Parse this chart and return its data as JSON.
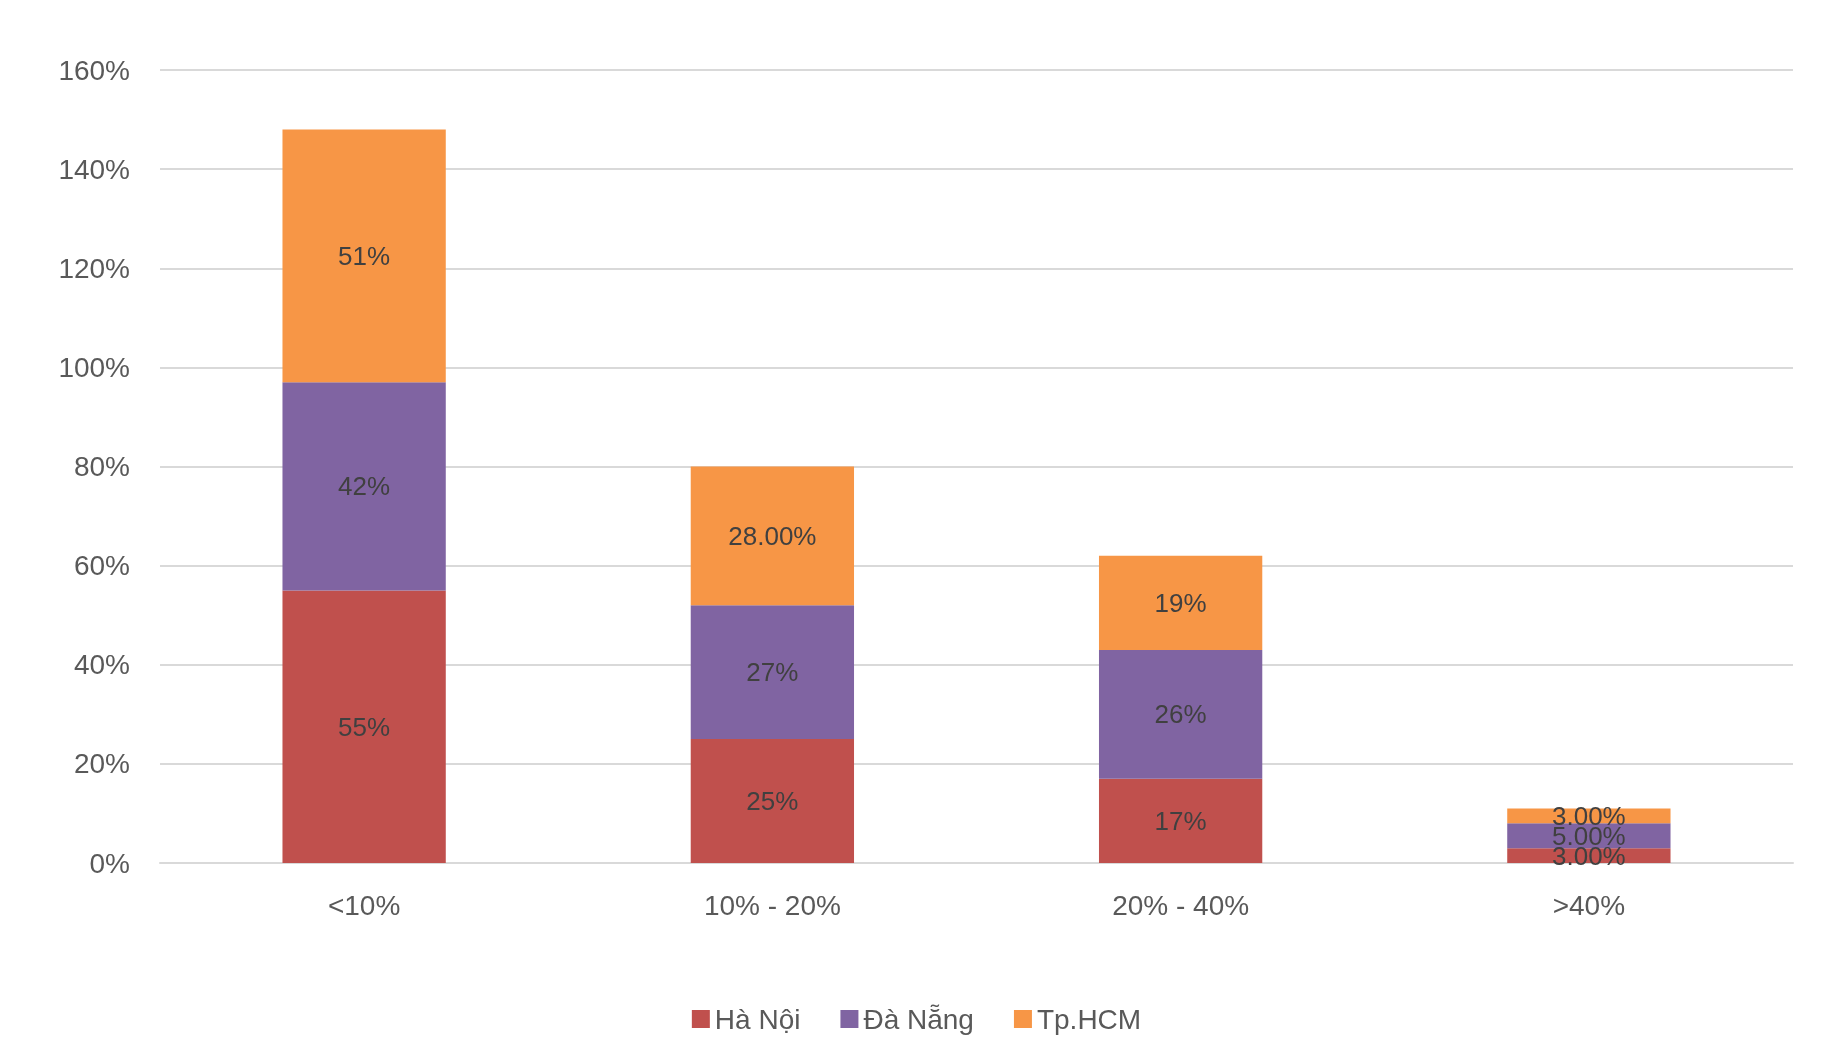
{
  "chart_data": {
    "type": "bar",
    "stacked": true,
    "categories": [
      "<10%",
      "10% - 20%",
      "20% - 40%",
      ">40%"
    ],
    "series": [
      {
        "name": "Hà Nội",
        "color": "#c0504d",
        "values": [
          55,
          25,
          17,
          3
        ],
        "value_labels": [
          "55%",
          "25%",
          "17%",
          "3.00%"
        ]
      },
      {
        "name": "Đà Nẵng",
        "color": "#8064a2",
        "values": [
          42,
          27,
          26,
          5
        ],
        "value_labels": [
          "42%",
          "27%",
          "26%",
          "5.00%"
        ]
      },
      {
        "name": "Tp.HCM",
        "color": "#f79646",
        "values": [
          51,
          28,
          19,
          3
        ],
        "value_labels": [
          "51%",
          "28.00%",
          "19%",
          "3.00%"
        ]
      }
    ],
    "ylim": [
      0,
      160
    ],
    "yticks": [
      {
        "value": 0,
        "label": "0%"
      },
      {
        "value": 20,
        "label": "20%"
      },
      {
        "value": 40,
        "label": "40%"
      },
      {
        "value": 60,
        "label": "60%"
      },
      {
        "value": 80,
        "label": "80%"
      },
      {
        "value": 100,
        "label": "100%"
      },
      {
        "value": 120,
        "label": "120%"
      },
      {
        "value": 140,
        "label": "140%"
      },
      {
        "value": 160,
        "label": "160%"
      }
    ],
    "grid": "y",
    "legend": "bottom"
  }
}
